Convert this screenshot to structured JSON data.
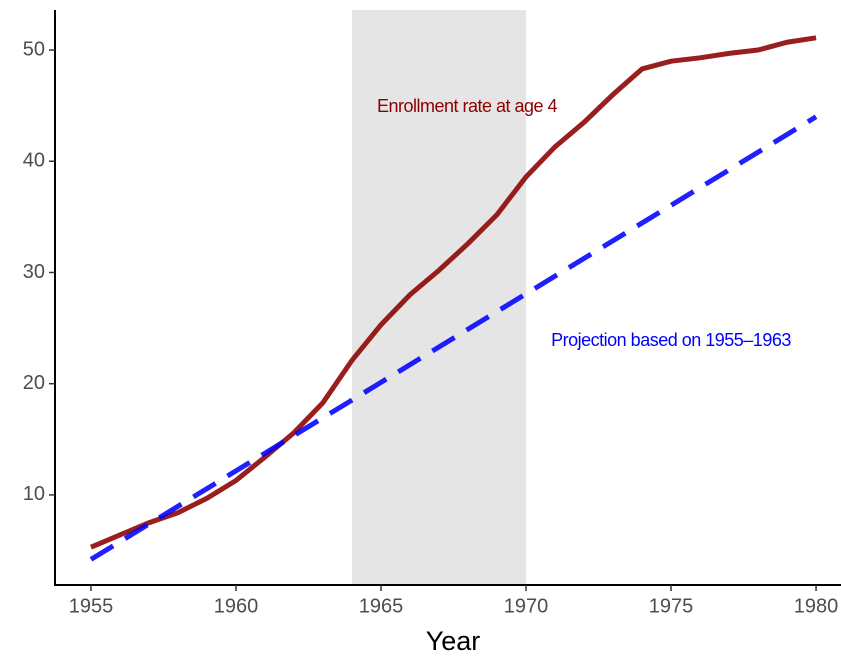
{
  "chart_data": {
    "type": "line",
    "xlabel": "Year",
    "xlim": [
      1953.76,
      1980.86
    ],
    "ylim": [
      1.9,
      53.6
    ],
    "xticks": [
      1955,
      1960,
      1965,
      1970,
      1975,
      1980
    ],
    "yticks": [
      10,
      20,
      30,
      40,
      50
    ],
    "shade": [
      1964,
      1970
    ],
    "shade_color": "#e5e5e5",
    "series": [
      {
        "name": "Enrollment rate at age 4",
        "color": "#8b0000",
        "dash": false,
        "x": [
          1955,
          1956,
          1957,
          1958,
          1959,
          1960,
          1961,
          1962,
          1963,
          1964,
          1965,
          1966,
          1967,
          1968,
          1969,
          1970,
          1971,
          1972,
          1973,
          1974,
          1975,
          1976,
          1977,
          1978,
          1979,
          1980
        ],
        "values": [
          5.3,
          6.4,
          7.5,
          8.4,
          9.7,
          11.3,
          13.4,
          15.6,
          18.3,
          22.1,
          25.3,
          28.0,
          30.2,
          32.6,
          35.2,
          38.6,
          41.3,
          43.5,
          46.0,
          48.3,
          49.0,
          49.3,
          49.7,
          50.0,
          50.7,
          51.1
        ]
      },
      {
        "name": "Projection based on 1955–1963",
        "color": "#0000ff",
        "dash": true,
        "x": [
          1955,
          1980
        ],
        "values": [
          4.2,
          44.0
        ]
      }
    ]
  }
}
